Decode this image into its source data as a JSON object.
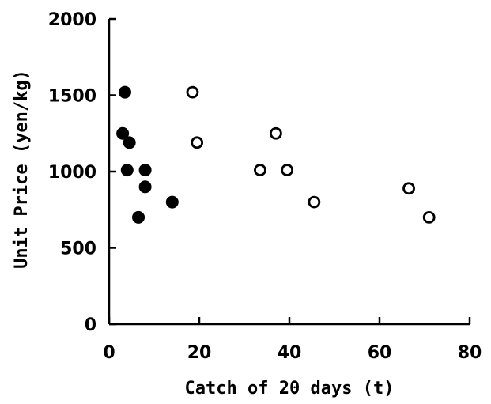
{
  "chart_data": {
    "type": "scatter",
    "title": "",
    "xlabel": "Catch of 20 days (t)",
    "ylabel": "Unit Price (yen/kg)",
    "xlim": [
      0,
      80
    ],
    "ylim": [
      0,
      2000
    ],
    "xticks": [
      "0",
      "20",
      "40",
      "60",
      "80"
    ],
    "yticks": [
      "0",
      "500",
      "1000",
      "1500",
      "2000"
    ],
    "grid": false,
    "legend": "none",
    "series": [
      {
        "marker": "filled-circle",
        "color": "#000000",
        "points": [
          {
            "x": 3.5,
            "y": 1520
          },
          {
            "x": 3.0,
            "y": 1250
          },
          {
            "x": 4.5,
            "y": 1190
          },
          {
            "x": 4.0,
            "y": 1010
          },
          {
            "x": 8.0,
            "y": 1010
          },
          {
            "x": 8.0,
            "y": 900
          },
          {
            "x": 6.5,
            "y": 700
          },
          {
            "x": 14.0,
            "y": 800
          }
        ]
      },
      {
        "marker": "open-circle",
        "color": "#000000",
        "points": [
          {
            "x": 18.5,
            "y": 1520
          },
          {
            "x": 19.5,
            "y": 1190
          },
          {
            "x": 37.0,
            "y": 1250
          },
          {
            "x": 33.5,
            "y": 1010
          },
          {
            "x": 39.5,
            "y": 1010
          },
          {
            "x": 45.5,
            "y": 800
          },
          {
            "x": 66.5,
            "y": 890
          },
          {
            "x": 71.0,
            "y": 700
          }
        ]
      }
    ]
  }
}
